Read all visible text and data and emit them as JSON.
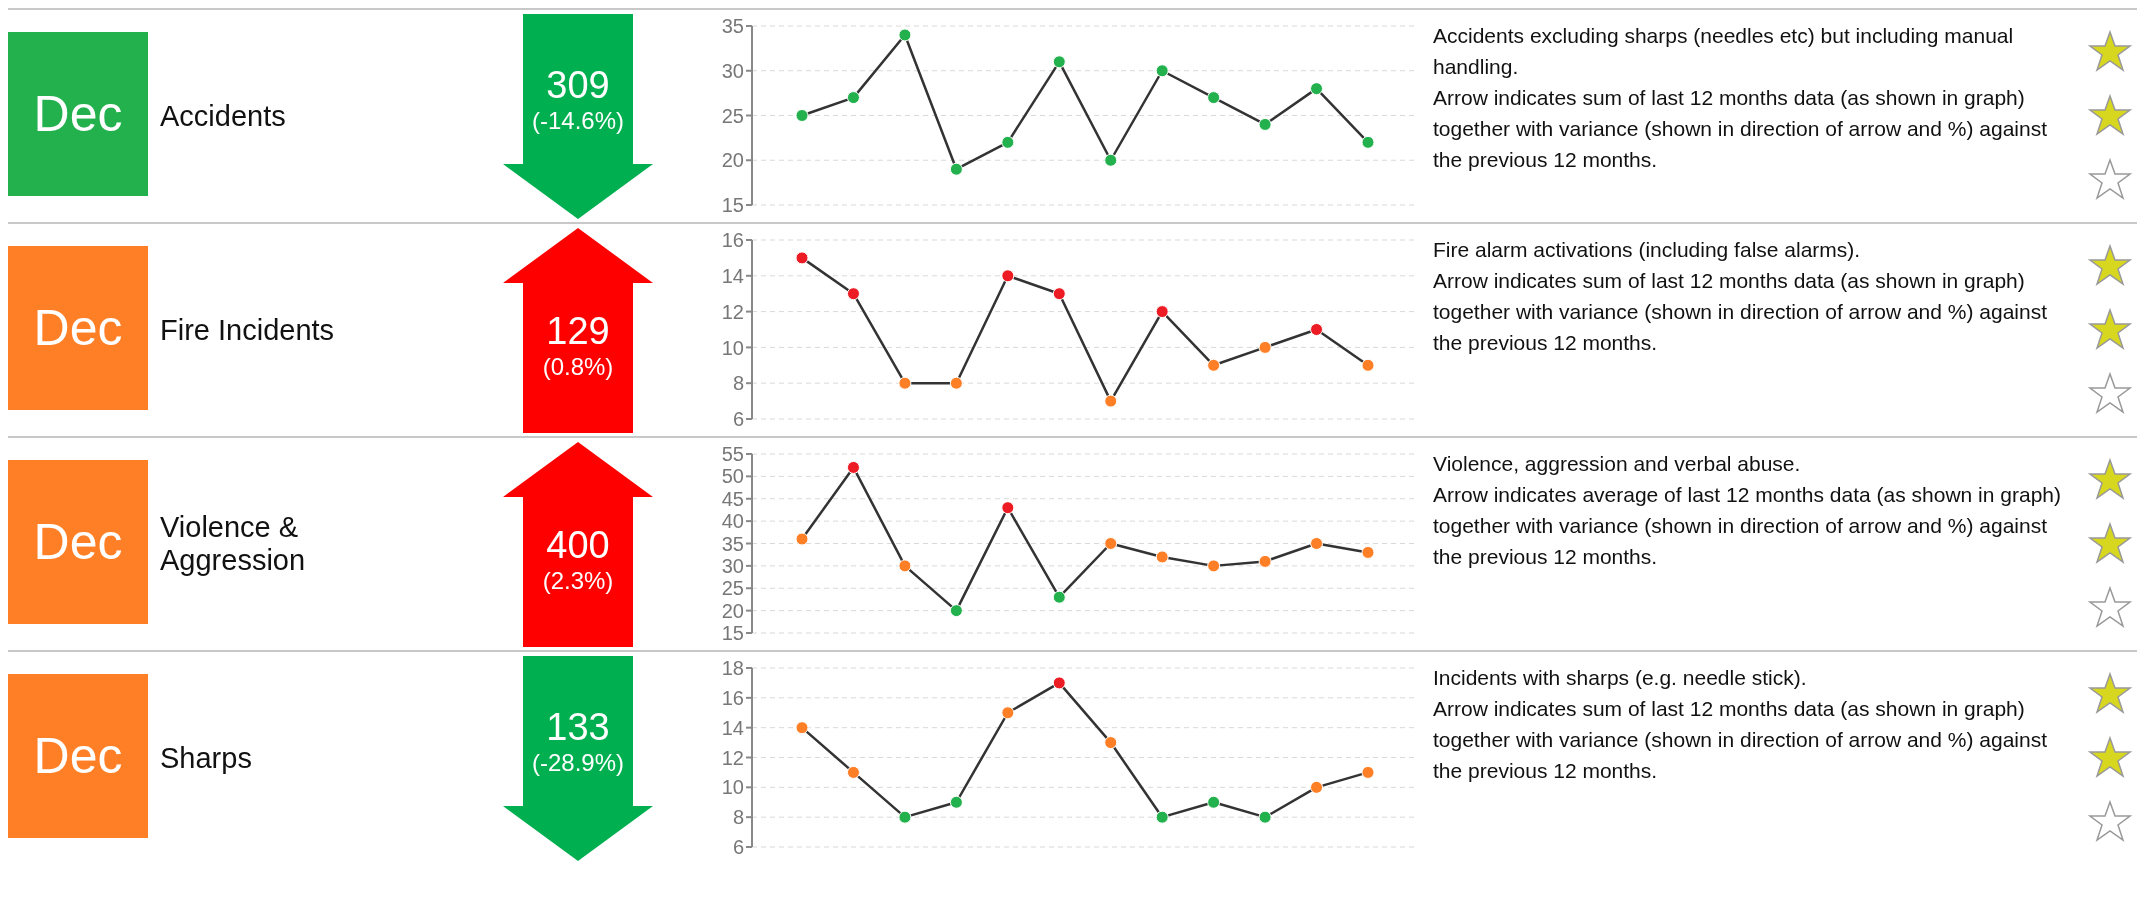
{
  "chart_data": [
    {
      "type": "line",
      "categories": [
        null,
        null,
        null,
        null,
        null,
        null,
        null,
        null,
        null,
        null,
        null,
        null
      ],
      "series": [
        {
          "color": "#333333",
          "values": [
            25,
            27,
            34,
            19,
            22,
            31,
            20,
            30,
            27,
            24,
            28,
            22
          ],
          "colors": [
            "#22b14c",
            "#22b14c",
            "#22b14c",
            "#22b14c",
            "#22b14c",
            "#22b14c",
            "#22b14c",
            "#22b14c",
            "#22b14c",
            "#22b14c",
            "#22b14c",
            "#22b14c"
          ]
        }
      ],
      "ylim": [
        15,
        35
      ],
      "yticks": [
        15,
        20,
        25,
        30,
        35
      ],
      "grid": "y",
      "marker": "circle",
      "annotations": [
        "Dec",
        "Accidents",
        "309",
        "(-14.6%)",
        "Accidents excluding sharps (needles etc) but including manual handling.",
        "Arrow indicates sum of last 12 months data (as shown in graph) together with variance (shown in direction of arrow and %) against the previous 12 months."
      ]
    },
    {
      "type": "line",
      "categories": [
        null,
        null,
        null,
        null,
        null,
        null,
        null,
        null,
        null,
        null,
        null,
        null
      ],
      "series": [
        {
          "color": "#333333",
          "values": [
            15,
            13,
            8,
            8,
            14,
            13,
            7,
            12,
            9,
            10,
            11,
            9
          ],
          "colors": [
            "#ed1c24",
            "#ed1c24",
            "#ff7f27",
            "#ff7f27",
            "#ed1c24",
            "#ed1c24",
            "#ff7f27",
            "#ed1c24",
            "#ff7f27",
            "#ff7f27",
            "#ed1c24",
            "#ff7f27"
          ]
        }
      ],
      "ylim": [
        6,
        16
      ],
      "yticks": [
        6,
        8,
        10,
        12,
        14,
        16
      ],
      "grid": "y",
      "marker": "circle",
      "annotations": [
        "Dec",
        "Fire Incidents",
        "129",
        "(0.8%)",
        "Fire alarm activations (including false alarms).",
        "Arrow indicates sum of last 12 months data (as shown in graph) together with variance (shown in direction of arrow and %) against the previous 12 months."
      ]
    },
    {
      "type": "line",
      "categories": [
        null,
        null,
        null,
        null,
        null,
        null,
        null,
        null,
        null,
        null,
        null,
        null
      ],
      "series": [
        {
          "color": "#333333",
          "values": [
            36,
            52,
            30,
            20,
            43,
            23,
            35,
            32,
            30,
            31,
            35,
            33
          ],
          "colors": [
            "#ff7f27",
            "#ed1c24",
            "#ff7f27",
            "#22b14c",
            "#ed1c24",
            "#22b14c",
            "#ff7f27",
            "#ff7f27",
            "#ff7f27",
            "#ff7f27",
            "#ff7f27",
            "#ff7f27"
          ]
        }
      ],
      "ylim": [
        15,
        55
      ],
      "yticks": [
        15,
        20,
        25,
        30,
        35,
        40,
        45,
        50,
        55
      ],
      "grid": "y",
      "marker": "circle",
      "annotations": [
        "Dec",
        "Violence & Aggression",
        "400",
        "(2.3%)",
        "Violence, aggression and verbal abuse.",
        "Arrow indicates average of last 12 months data (as shown in graph) together with variance (shown in direction of arrow and %) against the previous 12 months."
      ]
    },
    {
      "type": "line",
      "categories": [
        null,
        null,
        null,
        null,
        null,
        null,
        null,
        null,
        null,
        null,
        null,
        null
      ],
      "series": [
        {
          "color": "#333333",
          "values": [
            14,
            11,
            8,
            9,
            15,
            17,
            13,
            8,
            9,
            8,
            10,
            11
          ],
          "colors": [
            "#ff7f27",
            "#ff7f27",
            "#22b14c",
            "#22b14c",
            "#ff7f27",
            "#ed1c24",
            "#ff7f27",
            "#22b14c",
            "#22b14c",
            "#22b14c",
            "#ff7f27",
            "#ff7f27"
          ]
        }
      ],
      "ylim": [
        6,
        18
      ],
      "yticks": [
        6,
        8,
        10,
        12,
        14,
        16,
        18
      ],
      "grid": "y",
      "marker": "circle",
      "annotations": [
        "Dec",
        "Sharps",
        "133",
        "(-28.9%)",
        "Incidents with sharps (e.g. needle stick).",
        "Arrow indicates sum of last 12 months data (as shown in graph) together with variance (shown in direction of arrow and %) against the previous 12 months."
      ]
    }
  ]
}
